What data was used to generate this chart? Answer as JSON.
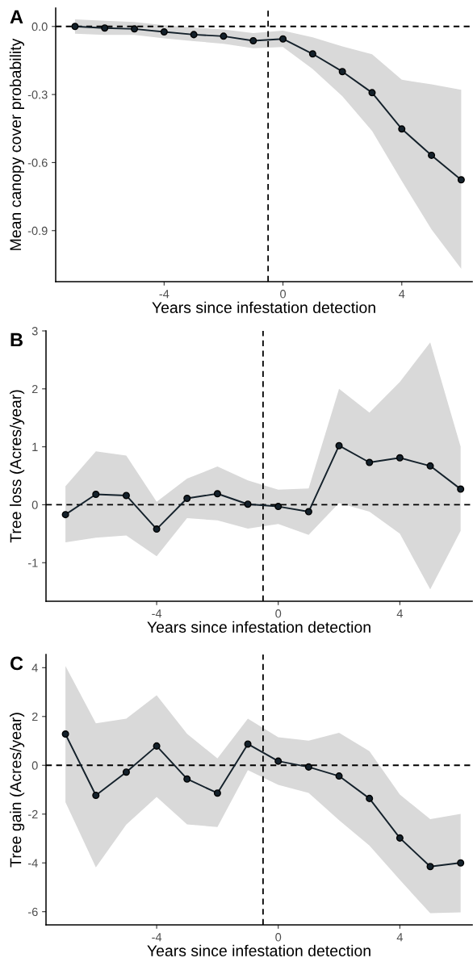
{
  "chart_data": [
    {
      "type": "line",
      "title": "A",
      "xlabel": "Years since infestation detection",
      "ylabel": "Mean canopy cover probability",
      "x": [
        -7,
        -6,
        -5,
        -4,
        -3,
        -2,
        -1,
        0,
        1,
        2,
        3,
        4,
        5,
        6
      ],
      "series": [
        {
          "color": "#14212b",
          "values": [
            0,
            -0.007,
            -0.011,
            -0.024,
            -0.036,
            -0.043,
            -0.063,
            -0.055,
            -0.121,
            -0.199,
            -0.292,
            -0.452,
            -0.568,
            -0.676
          ],
          "upper": [
            0.031,
            0.025,
            0.02,
            0.005,
            -0.005,
            -0.013,
            -0.029,
            -0.019,
            -0.048,
            -0.088,
            -0.123,
            -0.235,
            -0.255,
            -0.279
          ],
          "lower": [
            -0.032,
            -0.037,
            -0.037,
            -0.052,
            -0.065,
            -0.076,
            -0.096,
            -0.091,
            -0.188,
            -0.308,
            -0.461,
            -0.681,
            -0.895,
            -1.068
          ]
        }
      ],
      "xlim": [
        -7.65,
        6.37
      ],
      "xticks": [
        -4,
        0,
        4
      ],
      "ylim": [
        -1.125,
        0.081
      ],
      "yticks": [
        -0.9,
        -0.6,
        -0.3,
        {
          "value": 0,
          "label": "0.0"
        }
      ],
      "ref_lines": [
        {
          "axis": "y",
          "value": 0,
          "color": "#000000",
          "line_style": "dashed"
        },
        {
          "axis": "x",
          "value": -0.5,
          "color": "#000000",
          "line_style": "dashed"
        }
      ],
      "marker": "circle",
      "line_style": "solid",
      "grid": false
    },
    {
      "type": "line",
      "title": "B",
      "xlabel": "Years since infestation detection",
      "ylabel": "Tree loss (Acres/year)",
      "x": [
        -7,
        -6,
        -5,
        -4,
        -3,
        -2,
        -1,
        0,
        1,
        2,
        3,
        4,
        5,
        6
      ],
      "series": [
        {
          "color": "#14212b",
          "values": [
            -0.17,
            0.18,
            0.16,
            -0.42,
            0.11,
            0.19,
            0.01,
            -0.03,
            -0.12,
            1.02,
            0.73,
            0.81,
            0.67,
            0.27
          ],
          "upper": [
            0.32,
            0.92,
            0.85,
            0.05,
            0.45,
            0.66,
            0.42,
            0.26,
            0.28,
            2.0,
            1.59,
            2.12,
            2.8,
            1.0
          ],
          "lower": [
            -0.65,
            -0.57,
            -0.53,
            -0.89,
            -0.23,
            -0.27,
            -0.41,
            -0.33,
            -0.52,
            0.03,
            -0.12,
            -0.5,
            -1.46,
            -0.45
          ]
        }
      ],
      "xlim": [
        -7.64,
        6.38
      ],
      "xticks": [
        -4,
        0,
        4
      ],
      "ylim": [
        -1.665,
        3.0
      ],
      "yticks": [
        -1,
        0,
        1,
        2,
        3
      ],
      "ref_lines": [
        {
          "axis": "y",
          "value": 0,
          "color": "#000000",
          "line_style": "dashed"
        },
        {
          "axis": "x",
          "value": -0.5,
          "color": "#000000",
          "line_style": "dashed"
        }
      ],
      "marker": "circle",
      "line_style": "solid",
      "grid": false
    },
    {
      "type": "line",
      "title": "C",
      "xlabel": "Years since infestation detection",
      "ylabel": "Tree gain (Acres/year)",
      "x": [
        -7,
        -6,
        -5,
        -4,
        -3,
        -2,
        -1,
        0,
        1,
        2,
        3,
        4,
        5,
        6
      ],
      "series": [
        {
          "color": "#14212b",
          "values": [
            1.28,
            -1.23,
            -0.28,
            0.79,
            -0.56,
            -1.14,
            0.87,
            0.17,
            -0.07,
            -0.44,
            -1.36,
            -2.98,
            -4.15,
            -4.0
          ],
          "upper": [
            4.07,
            1.72,
            1.91,
            2.87,
            1.29,
            0.28,
            1.91,
            1.15,
            1.01,
            1.33,
            0.58,
            -1.2,
            -2.21,
            -1.99
          ],
          "lower": [
            -1.51,
            -4.18,
            -2.43,
            -1.3,
            -2.42,
            -2.53,
            -0.2,
            -0.8,
            -1.13,
            -2.25,
            -3.29,
            -4.7,
            -6.06,
            -6.03
          ]
        }
      ],
      "xlim": [
        -7.64,
        6.38
      ],
      "xticks": [
        -4,
        0,
        4
      ],
      "ylim": [
        -6.54,
        4.54
      ],
      "yticks": [
        -6,
        -4,
        -2,
        0,
        2,
        4
      ],
      "ref_lines": [
        {
          "axis": "y",
          "value": 0,
          "color": "#000000",
          "line_style": "dashed"
        },
        {
          "axis": "x",
          "value": -0.5,
          "color": "#000000",
          "line_style": "dashed"
        }
      ],
      "marker": "circle",
      "line_style": "solid",
      "grid": false
    }
  ]
}
